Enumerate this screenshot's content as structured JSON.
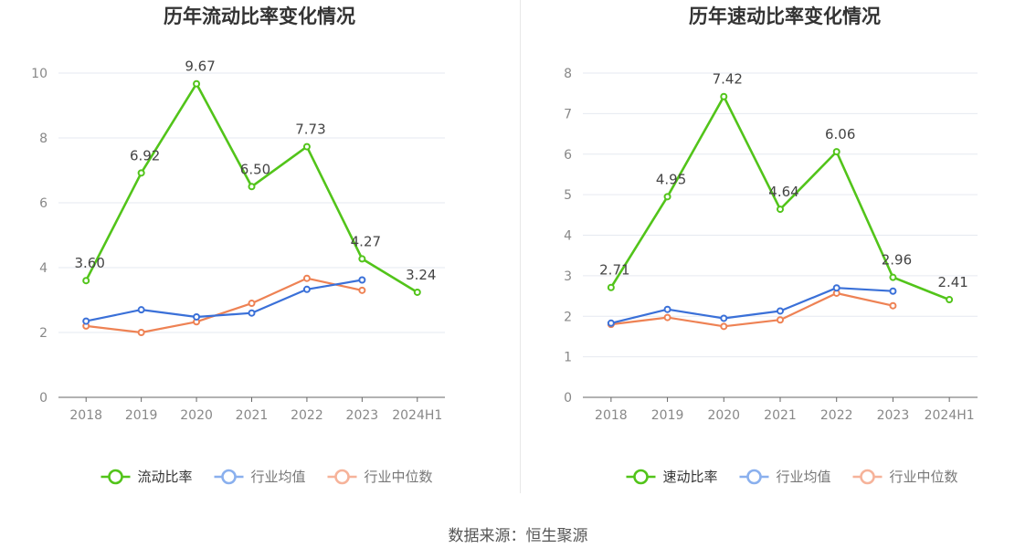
{
  "colors": {
    "primary": "#52c41a",
    "avg": "#3a70d8",
    "median": "#ee8254",
    "avg_legend": "#8ab0ee",
    "median_legend": "#f6b39a",
    "grid": "#e6e9f0",
    "axis": "#666666",
    "tick": "#888888",
    "title": "#333333"
  },
  "chart_data": [
    {
      "type": "line",
      "title": "历年流动比率变化情况",
      "categories": [
        "2018",
        "2019",
        "2020",
        "2021",
        "2022",
        "2023",
        "2024H1"
      ],
      "ylim": [
        0,
        10
      ],
      "yticks": [
        0,
        2,
        4,
        6,
        8,
        10
      ],
      "series": [
        {
          "name": "流动比率",
          "values": [
            3.6,
            6.92,
            9.67,
            6.5,
            7.73,
            4.27,
            3.24
          ],
          "labels": [
            "3.60",
            "6.92",
            "9.67",
            "6.50",
            "7.73",
            "4.27",
            "3.24"
          ]
        },
        {
          "name": "行业均值",
          "values": [
            2.35,
            2.7,
            2.48,
            2.6,
            3.33,
            3.62,
            null
          ]
        },
        {
          "name": "行业中位数",
          "values": [
            2.2,
            2.0,
            2.33,
            2.9,
            3.67,
            3.3,
            null
          ]
        }
      ]
    },
    {
      "type": "line",
      "title": "历年速动比率变化情况",
      "categories": [
        "2018",
        "2019",
        "2020",
        "2021",
        "2022",
        "2023",
        "2024H1"
      ],
      "ylim": [
        0,
        8
      ],
      "yticks": [
        0,
        1,
        2,
        3,
        4,
        5,
        6,
        7,
        8
      ],
      "series": [
        {
          "name": "速动比率",
          "values": [
            2.71,
            4.95,
            7.42,
            4.64,
            6.06,
            2.96,
            2.41
          ],
          "labels": [
            "2.71",
            "4.95",
            "7.42",
            "4.64",
            "6.06",
            "2.96",
            "2.41"
          ]
        },
        {
          "name": "行业均值",
          "values": [
            1.83,
            2.17,
            1.95,
            2.13,
            2.7,
            2.62,
            null
          ]
        },
        {
          "name": "行业中位数",
          "values": [
            1.8,
            1.97,
            1.75,
            1.91,
            2.57,
            2.26,
            null
          ]
        }
      ]
    }
  ],
  "footer": {
    "source": "数据来源：恒生聚源"
  }
}
